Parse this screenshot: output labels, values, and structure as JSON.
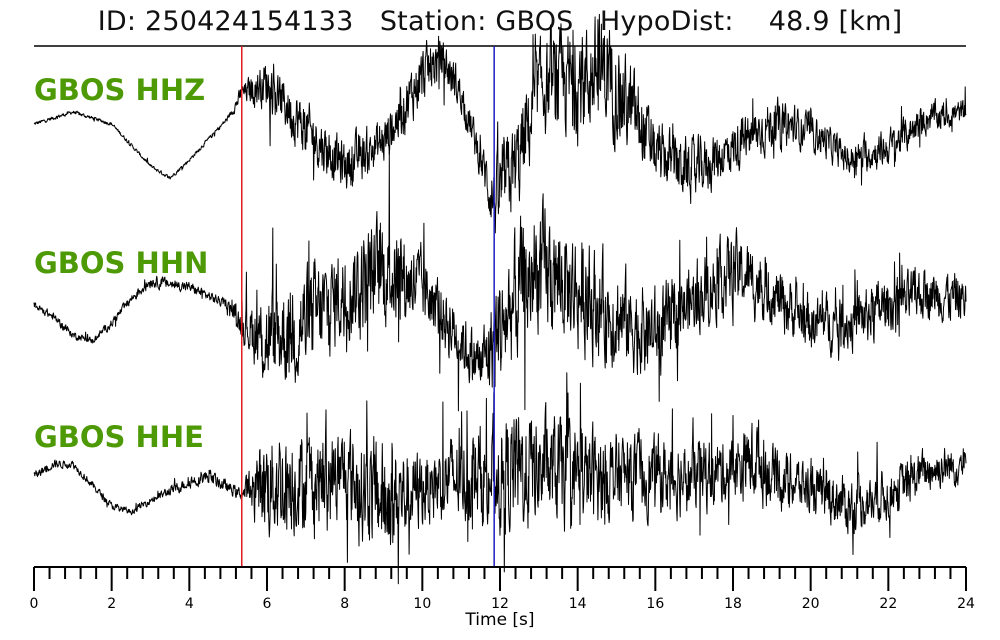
{
  "header": {
    "id_label": "ID:",
    "id_value": "250424154133",
    "station_label": "Station:",
    "station_value": "GBOS",
    "dist_label": "HypoDist:",
    "dist_value": "48.9",
    "dist_unit": "[km]"
  },
  "colors": {
    "label": "#4e9a06",
    "trace": "#000000",
    "p_pick": "#e41a1c",
    "s_pick": "#1f1fbf"
  },
  "chart_data": {
    "type": "line",
    "title": "ID: 250424154133   Station: GBOS   HypoDist:    48.9 [km]",
    "xlabel": "Time [s]",
    "ylabel": "",
    "xlim": [
      0,
      24
    ],
    "x_ticks": [
      0,
      2,
      4,
      6,
      8,
      10,
      12,
      14,
      16,
      18,
      20,
      22,
      24
    ],
    "minor_tick_step": 0.4,
    "grid": false,
    "p_pick_time": 5.35,
    "s_pick_time": 11.85,
    "series": [
      {
        "name": "GBOS HHZ",
        "envelope_times": [
          0,
          1,
          2,
          3,
          3.5,
          4,
          5,
          5.35,
          6,
          7,
          8,
          9,
          10,
          10.5,
          11,
          11.5,
          11.85,
          12.5,
          13,
          14,
          14.7,
          15.5,
          16,
          17,
          18,
          19,
          20,
          21,
          22,
          23,
          24
        ],
        "envelope_center": [
          0.1,
          0.3,
          0.1,
          -0.6,
          -0.8,
          -0.5,
          0.2,
          0.6,
          0.8,
          0.0,
          -0.6,
          -0.2,
          0.9,
          1.2,
          0.6,
          -0.5,
          -1.2,
          -0.5,
          0.7,
          0.8,
          1.0,
          0.2,
          -0.4,
          -0.7,
          -0.3,
          0.1,
          0.0,
          -0.5,
          -0.3,
          0.2,
          0.3
        ],
        "envelope_amplitude": [
          0.03,
          0.03,
          0.03,
          0.03,
          0.03,
          0.03,
          0.04,
          0.15,
          0.4,
          0.45,
          0.4,
          0.4,
          0.45,
          0.4,
          0.3,
          0.3,
          0.6,
          0.8,
          0.7,
          0.9,
          0.9,
          0.7,
          0.5,
          0.5,
          0.4,
          0.4,
          0.3,
          0.25,
          0.3,
          0.25,
          0.2
        ]
      },
      {
        "name": "GBOS HHN",
        "envelope_times": [
          0,
          0.5,
          1,
          1.5,
          2,
          2.5,
          3,
          4,
          5,
          5.35,
          6,
          7,
          8,
          9,
          10,
          11,
          11.5,
          11.85,
          12.5,
          13,
          14,
          15,
          16,
          17,
          18,
          19,
          20,
          21,
          22,
          23,
          24
        ],
        "envelope_center": [
          0.0,
          -0.2,
          -0.5,
          -0.6,
          -0.3,
          0.1,
          0.4,
          0.3,
          0.0,
          -0.3,
          -0.6,
          -0.3,
          0.2,
          0.6,
          0.3,
          -0.6,
          -1.0,
          -0.6,
          0.2,
          0.6,
          0.2,
          -0.2,
          -0.5,
          0.1,
          0.6,
          0.2,
          -0.3,
          -0.3,
          0.0,
          0.2,
          0.1
        ],
        "envelope_amplitude": [
          0.06,
          0.07,
          0.06,
          0.05,
          0.07,
          0.08,
          0.1,
          0.08,
          0.08,
          0.25,
          0.8,
          0.9,
          0.75,
          0.9,
          0.6,
          0.5,
          0.5,
          0.9,
          1.1,
          1.0,
          0.9,
          0.8,
          0.7,
          0.55,
          0.6,
          0.5,
          0.45,
          0.45,
          0.45,
          0.4,
          0.4
        ]
      },
      {
        "name": "GBOS HHE",
        "envelope_times": [
          0,
          0.5,
          1,
          2,
          2.5,
          3,
          4,
          4.5,
          5,
          5.35,
          6,
          7,
          8,
          9,
          10,
          11,
          11.85,
          12.5,
          13,
          14,
          15,
          16,
          17,
          18,
          18.6,
          19,
          20,
          21,
          22,
          23,
          24
        ],
        "envelope_center": [
          0.0,
          0.2,
          0.2,
          -0.5,
          -0.6,
          -0.4,
          -0.1,
          0.0,
          -0.2,
          -0.3,
          -0.1,
          -0.1,
          0.0,
          -0.4,
          -0.2,
          0.0,
          0.0,
          0.1,
          0.1,
          0.0,
          0.0,
          0.0,
          0.0,
          0.1,
          0.3,
          0.0,
          -0.2,
          -0.5,
          -0.3,
          0.1,
          0.2
        ],
        "envelope_amplitude": [
          0.07,
          0.07,
          0.06,
          0.06,
          0.05,
          0.06,
          0.1,
          0.12,
          0.1,
          0.1,
          0.9,
          0.8,
          0.75,
          0.95,
          0.6,
          0.7,
          0.9,
          1.0,
          0.9,
          0.85,
          0.65,
          0.6,
          0.6,
          0.5,
          0.7,
          0.5,
          0.4,
          0.45,
          0.4,
          0.35,
          0.3
        ]
      }
    ]
  }
}
